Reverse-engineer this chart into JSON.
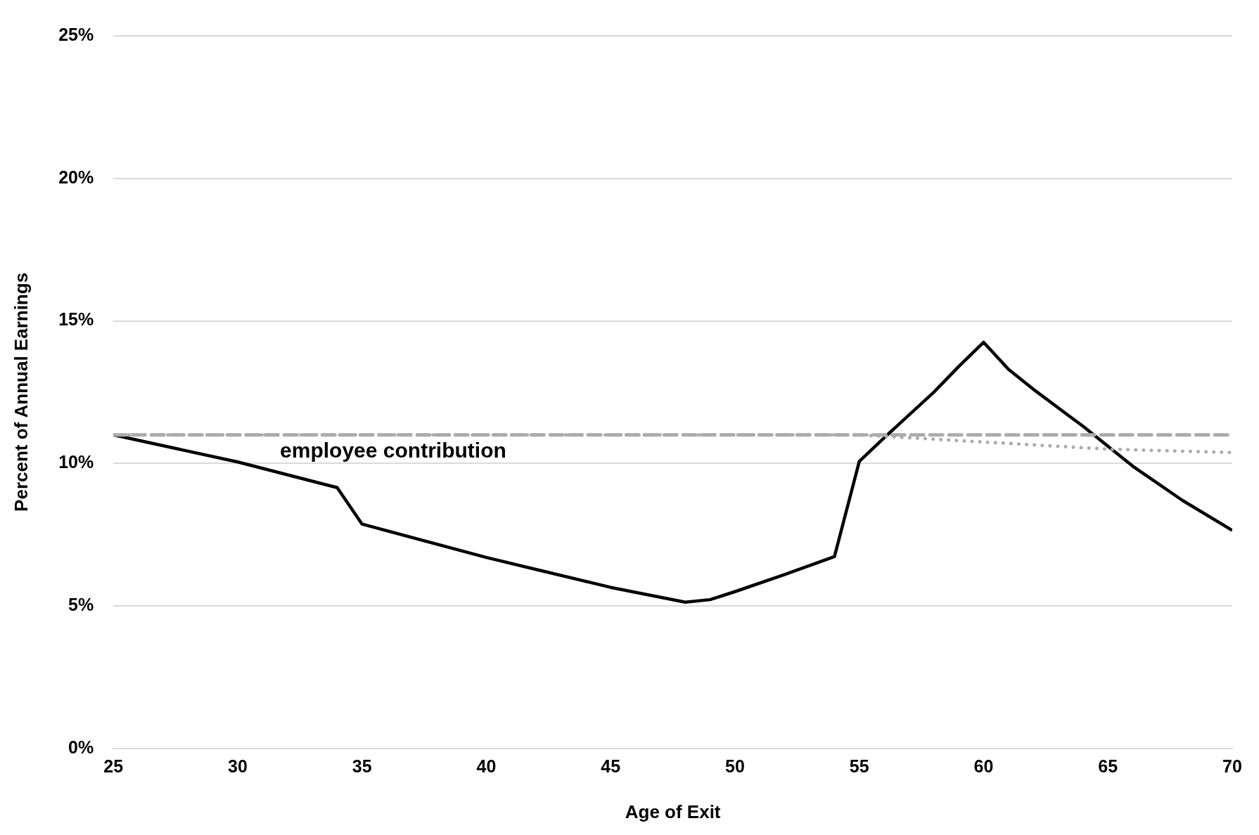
{
  "chart_data": {
    "type": "line",
    "xlabel": "Age of Exit",
    "ylabel": "Percent of Annual Earnings",
    "xlim": [
      25,
      70
    ],
    "xticks": [
      25,
      30,
      35,
      40,
      45,
      50,
      55,
      60,
      65,
      70
    ],
    "ylim": [
      0,
      25
    ],
    "yticks": [
      {
        "value": 0,
        "label": "0%"
      },
      {
        "value": 5,
        "label": "5%"
      },
      {
        "value": 10,
        "label": "10%"
      },
      {
        "value": 15,
        "label": "15%"
      },
      {
        "value": 20,
        "label": "20%"
      },
      {
        "value": 25,
        "label": "25%"
      }
    ],
    "grid": "y",
    "marker": "none",
    "series": [
      {
        "color": "#adaaaa",
        "line_style": "dashed",
        "x": [
          25,
          70
        ],
        "values": [
          11.0,
          11.0
        ]
      },
      {
        "color": "#adaaaa",
        "line_style": "dotted",
        "x": [
          25,
          55,
          60,
          65,
          70
        ],
        "values": [
          11.0,
          11.0,
          10.75,
          10.5,
          10.38
        ]
      },
      {
        "color": "#000000",
        "line_style": "solid",
        "x": [
          25,
          30,
          34,
          35,
          40,
          45,
          48,
          49,
          50,
          52,
          54,
          55,
          56,
          58,
          59,
          60,
          61,
          62,
          64,
          66,
          68,
          70
        ],
        "values": [
          11.0,
          10.05,
          9.15,
          7.87,
          6.7,
          5.65,
          5.13,
          5.22,
          5.5,
          6.1,
          6.73,
          10.07,
          10.9,
          12.5,
          13.4,
          14.25,
          13.3,
          12.6,
          11.3,
          9.9,
          8.7,
          7.65
        ]
      }
    ],
    "annotations": [
      "employee contribution"
    ]
  }
}
